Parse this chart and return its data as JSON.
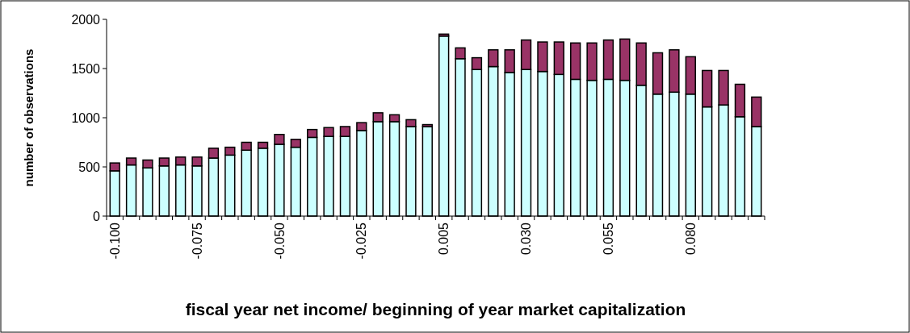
{
  "chart_data": {
    "type": "bar",
    "stacked": true,
    "xlabel": "fiscal year net income/ beginning of year market capitalization",
    "ylabel": "number of observations",
    "categories": [
      "-0.100",
      null,
      null,
      null,
      null,
      "-0.075",
      null,
      null,
      null,
      null,
      "-0.050",
      null,
      null,
      null,
      null,
      "-0.025",
      null,
      null,
      null,
      null,
      "0.005",
      null,
      null,
      null,
      null,
      "0.030",
      null,
      null,
      null,
      null,
      "0.055",
      null,
      null,
      null,
      null,
      "0.080",
      null,
      null,
      null,
      null
    ],
    "series": [
      {
        "color": "#ccffff",
        "values": [
          460,
          520,
          490,
          510,
          520,
          510,
          590,
          620,
          670,
          690,
          730,
          700,
          800,
          810,
          810,
          870,
          960,
          960,
          910,
          910,
          1830,
          1600,
          1490,
          1520,
          1460,
          1490,
          1470,
          1440,
          1390,
          1380,
          1390,
          1380,
          1330,
          1240,
          1260,
          1240,
          1110,
          1130,
          1010,
          910
        ]
      },
      {
        "color": "#993366",
        "values": [
          80,
          70,
          80,
          80,
          80,
          90,
          100,
          80,
          80,
          60,
          100,
          80,
          80,
          90,
          100,
          80,
          90,
          70,
          70,
          20,
          20,
          110,
          120,
          170,
          230,
          300,
          300,
          330,
          370,
          380,
          400,
          420,
          430,
          420,
          430,
          380,
          370,
          350,
          330,
          300
        ]
      }
    ],
    "ylim": [
      0,
      2000
    ],
    "yticks": [
      0,
      500,
      1000,
      1500,
      2000
    ],
    "grid": false
  }
}
